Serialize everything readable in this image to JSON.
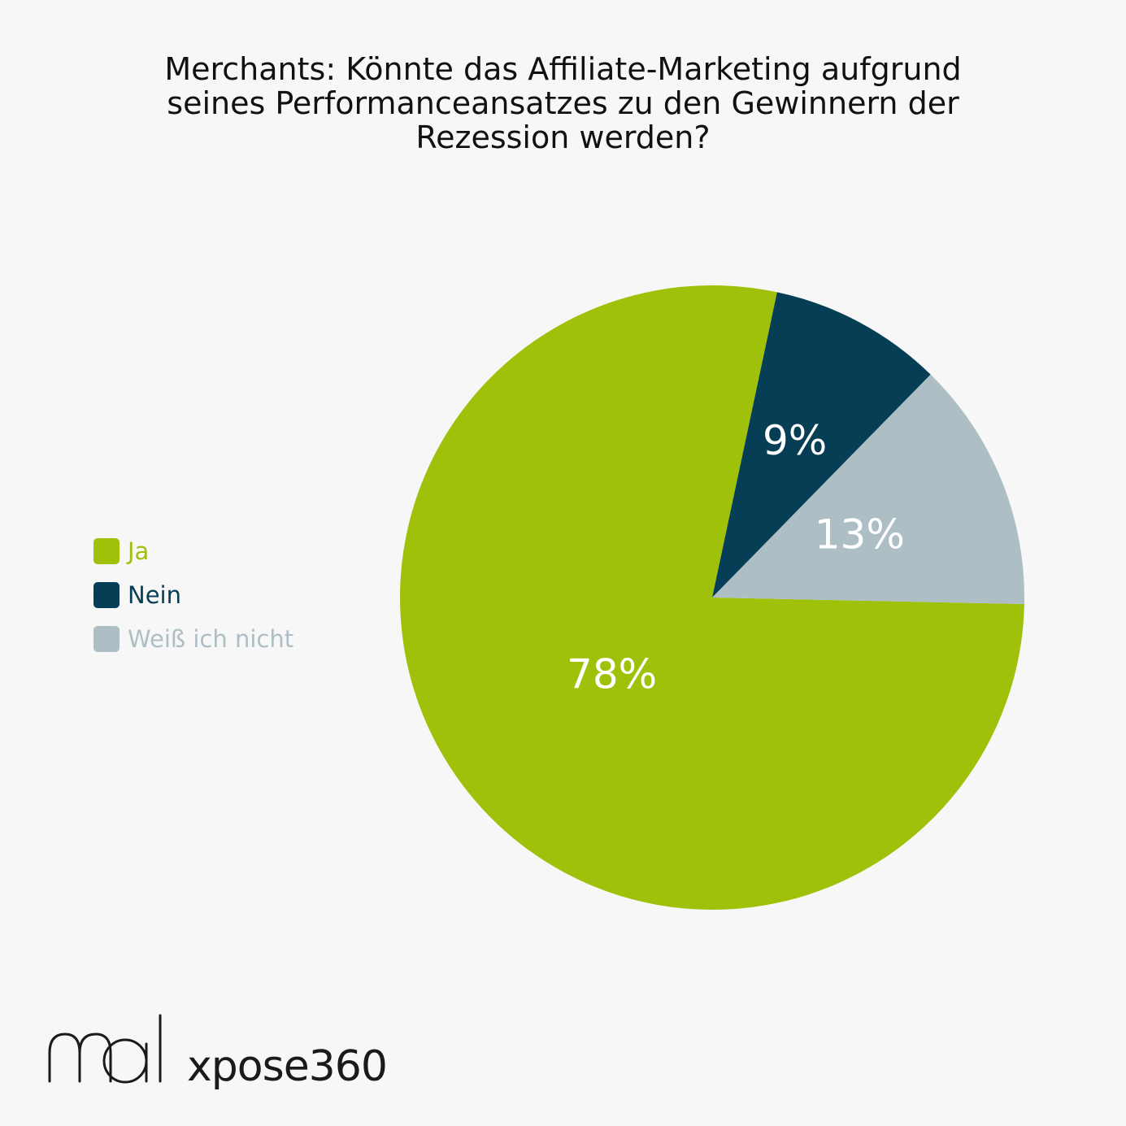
{
  "chart_data": {
    "type": "pie",
    "title": "Merchants: Könnte das Affiliate-Marketing aufgrund seines Performanceansatzes zu den Gewinnern der Rezession werden?",
    "slices": [
      {
        "label": "Ja",
        "value": 78,
        "display": "78%",
        "color": "#9fc10a"
      },
      {
        "label": "Nein",
        "value": 9,
        "display": "9%",
        "color": "#063e55"
      },
      {
        "label": "Weiß ich nicht",
        "value": 13,
        "display": "13%",
        "color": "#adbfc5"
      }
    ],
    "legend_position": "left"
  },
  "title_lines": [
    "Merchants: Könnte das Affiliate-Marketing aufgrund",
    "seines Performanceansatzes zu den Gewinnern der",
    "Rezession werden?"
  ],
  "branding": {
    "logo_mai": "mai",
    "logo_xpose": "xpose360"
  }
}
